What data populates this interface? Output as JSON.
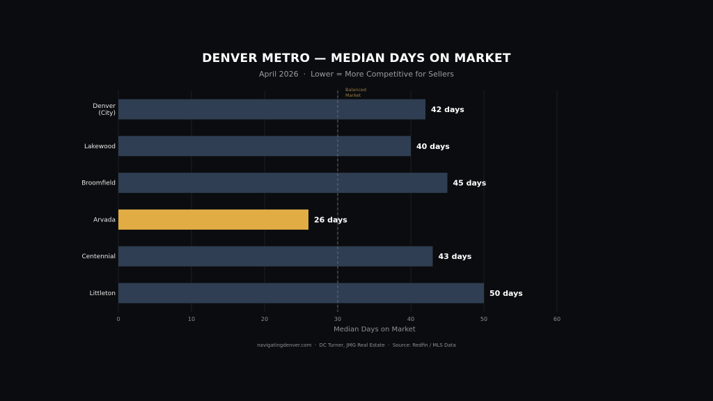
{
  "chart_data": {
    "type": "bar",
    "orientation": "horizontal",
    "title": "DENVER METRO — MEDIAN DAYS ON MARKET",
    "subtitle": "April 2026  ·  Lower = More Competitive for Sellers",
    "xlabel": "Median Days on Market",
    "ylabel": "",
    "xlim": [
      0,
      60
    ],
    "xticks": [
      0,
      10,
      20,
      30,
      40,
      50,
      60
    ],
    "categories": [
      [
        "Denver",
        "(City)"
      ],
      [
        "Lakewood"
      ],
      [
        "Broomfield"
      ],
      [
        "Arvada"
      ],
      [
        "Centennial"
      ],
      [
        "Littleton"
      ]
    ],
    "values": [
      42,
      40,
      45,
      26,
      43,
      50
    ],
    "value_labels": [
      "42 days",
      "40 days",
      "45 days",
      "26 days",
      "43 days",
      "50 days"
    ],
    "highlight_index": 3,
    "reference_line": {
      "value": 30,
      "label": [
        "Balanced",
        "Market"
      ]
    },
    "grid": true,
    "legend": "none",
    "colors": {
      "bar": "#2f3e52",
      "highlight": "#e1ac43",
      "reference": "#6a6c72",
      "background": "#0b0c0f"
    }
  },
  "footer": "navigatingdenver.com  ·  DC Turner, JMG Real Estate  ·  Source: Redfin / MLS Data"
}
